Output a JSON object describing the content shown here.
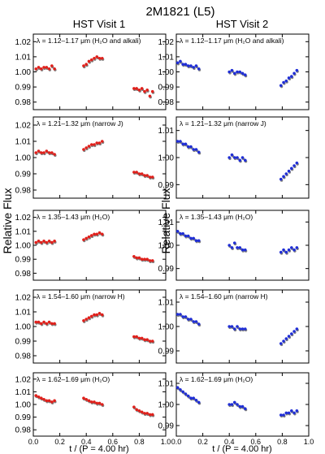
{
  "figure": {
    "title": "2M1821 (L5)",
    "ylabel": "Relative Flux",
    "xlabel": "t / (P = 4.00 hr)"
  },
  "colors": {
    "left": "#e0201b",
    "right": "#1f2ed6",
    "model": "#808080"
  },
  "chart_data": [
    {
      "type": "scatter",
      "title": "HST Visit 1",
      "label": "λ = 1.12–1.17 μm (H₂O and alkali)",
      "xlim": [
        0.0,
        1.0
      ],
      "ylim": [
        0.975,
        1.025
      ],
      "xticks": [
        "0.0",
        "0.2",
        "0.4",
        "0.6",
        "0.8",
        "1.0"
      ],
      "yticks": [
        "1.02",
        "1.01",
        "1.00",
        "0.99",
        "0.98"
      ],
      "series": [
        {
          "x": [
            0.02,
            0.04,
            0.06,
            0.08,
            0.1,
            0.12,
            0.14,
            0.16
          ],
          "y": [
            1.002,
            1.003,
            1.002,
            1.003,
            1.003,
            1.002,
            1.004,
            1.002
          ]
        },
        {
          "x": [
            0.38,
            0.4,
            0.42,
            0.44,
            0.46,
            0.48,
            0.5,
            0.52
          ],
          "y": [
            1.004,
            1.005,
            1.007,
            1.008,
            1.009,
            1.01,
            1.009,
            1.009
          ]
        },
        {
          "x": [
            0.76,
            0.78,
            0.8,
            0.82,
            0.84,
            0.86,
            0.88,
            0.9
          ],
          "y": [
            0.989,
            0.989,
            0.988,
            0.989,
            0.987,
            0.988,
            0.984,
            0.987
          ]
        }
      ]
    },
    {
      "type": "scatter",
      "title": "HST Visit 2",
      "label": "λ = 1.12–1.17 μm (H₂O and alkali)",
      "xlim": [
        0.0,
        1.0
      ],
      "ylim": [
        0.975,
        1.025
      ],
      "xticks": [
        "0.0",
        "0.2",
        "0.4",
        "0.6",
        "0.8",
        "1.0"
      ],
      "yticks": [
        "1.02",
        "1.01",
        "1.00",
        "0.99",
        "0.98"
      ],
      "series": [
        {
          "x": [
            0.01,
            0.03,
            0.05,
            0.07,
            0.09,
            0.11,
            0.13,
            0.15,
            0.17
          ],
          "y": [
            1.006,
            1.007,
            1.005,
            1.005,
            1.004,
            1.004,
            1.003,
            1.004,
            1.002
          ]
        },
        {
          "x": [
            0.4,
            0.42,
            0.44,
            0.46,
            0.48,
            0.5,
            0.52
          ],
          "y": [
            1.0,
            1.001,
            0.999,
            1.0,
            1.0,
            0.999,
            0.998
          ]
        },
        {
          "x": [
            0.79,
            0.81,
            0.83,
            0.85,
            0.87,
            0.89,
            0.91
          ],
          "y": [
            0.991,
            0.993,
            0.994,
            0.996,
            0.997,
            0.999,
            1.001
          ]
        }
      ]
    },
    {
      "type": "scatter",
      "label": "λ = 1.21–1.32 μm (narrow J)",
      "xlim": [
        0.0,
        1.0
      ],
      "ylim": [
        0.975,
        1.025
      ],
      "xticks": [
        "0.0",
        "0.2",
        "0.4",
        "0.6",
        "0.8",
        "1.0"
      ],
      "yticks": [
        "1.02",
        "1.01",
        "1.00",
        "0.99",
        "0.98"
      ],
      "series": [
        {
          "x": [
            0.02,
            0.04,
            0.06,
            0.08,
            0.1,
            0.12,
            0.14,
            0.16
          ],
          "y": [
            1.003,
            1.004,
            1.003,
            1.003,
            1.004,
            1.003,
            1.003,
            1.002
          ]
        },
        {
          "x": [
            0.38,
            0.4,
            0.42,
            0.44,
            0.46,
            0.48,
            0.5,
            0.52
          ],
          "y": [
            1.005,
            1.006,
            1.007,
            1.008,
            1.008,
            1.009,
            1.009,
            1.01
          ]
        },
        {
          "x": [
            0.76,
            0.78,
            0.8,
            0.82,
            0.84,
            0.86,
            0.88,
            0.9
          ],
          "y": [
            0.991,
            0.991,
            0.99,
            0.99,
            0.989,
            0.989,
            0.988,
            0.988
          ]
        }
      ]
    },
    {
      "type": "scatter",
      "label": "λ = 1.21–1.32 μm (narrow J)",
      "xlim": [
        0.0,
        1.0
      ],
      "ylim": [
        0.985,
        1.015
      ],
      "xticks": [
        "0.0",
        "0.2",
        "0.4",
        "0.6",
        "0.8",
        "1.0"
      ],
      "yticks": [
        "1.01",
        "1.00",
        "0.99"
      ],
      "series": [
        {
          "x": [
            0.01,
            0.03,
            0.05,
            0.07,
            0.09,
            0.11,
            0.13,
            0.15,
            0.17
          ],
          "y": [
            1.006,
            1.006,
            1.005,
            1.005,
            1.004,
            1.004,
            1.003,
            1.003,
            1.002
          ]
        },
        {
          "x": [
            0.4,
            0.42,
            0.44,
            0.46,
            0.48,
            0.5,
            0.52
          ],
          "y": [
            1.0,
            1.001,
            1.0,
            1.0,
            0.999,
            1.0,
            0.999
          ]
        },
        {
          "x": [
            0.79,
            0.81,
            0.83,
            0.85,
            0.87,
            0.89,
            0.91
          ],
          "y": [
            0.992,
            0.993,
            0.994,
            0.995,
            0.996,
            0.997,
            0.998
          ]
        }
      ]
    },
    {
      "type": "scatter",
      "label": "λ = 1.35–1.43 μm (H₂O)",
      "xlim": [
        0.0,
        1.0
      ],
      "ylim": [
        0.975,
        1.025
      ],
      "xticks": [
        "0.0",
        "0.2",
        "0.4",
        "0.6",
        "0.8",
        "1.0"
      ],
      "yticks": [
        "1.02",
        "1.01",
        "1.00",
        "0.99",
        "0.98"
      ],
      "series": [
        {
          "x": [
            0.02,
            0.04,
            0.06,
            0.08,
            0.1,
            0.12,
            0.14,
            0.16
          ],
          "y": [
            1.002,
            1.003,
            1.002,
            1.003,
            1.002,
            1.003,
            1.002,
            1.003
          ]
        },
        {
          "x": [
            0.38,
            0.4,
            0.42,
            0.44,
            0.46,
            0.48,
            0.5,
            0.52
          ],
          "y": [
            1.004,
            1.005,
            1.006,
            1.007,
            1.008,
            1.008,
            1.009,
            1.008
          ]
        },
        {
          "x": [
            0.76,
            0.78,
            0.8,
            0.82,
            0.84,
            0.86,
            0.88,
            0.9
          ],
          "y": [
            0.992,
            0.991,
            0.991,
            0.99,
            0.99,
            0.99,
            0.989,
            0.989
          ]
        }
      ]
    },
    {
      "type": "scatter",
      "label": "λ = 1.35–1.43 μm (H₂O)",
      "xlim": [
        0.0,
        1.0
      ],
      "ylim": [
        0.985,
        1.015
      ],
      "xticks": [
        "0.0",
        "0.2",
        "0.4",
        "0.6",
        "0.8",
        "1.0"
      ],
      "yticks": [
        "1.01",
        "1.00",
        "0.99"
      ],
      "series": [
        {
          "x": [
            0.01,
            0.03,
            0.05,
            0.07,
            0.09,
            0.11,
            0.13,
            0.15,
            0.17
          ],
          "y": [
            1.006,
            1.005,
            1.005,
            1.004,
            1.004,
            1.003,
            1.003,
            1.002,
            1.002
          ]
        },
        {
          "x": [
            0.4,
            0.42,
            0.44,
            0.46,
            0.48,
            0.5,
            0.52
          ],
          "y": [
            1.0,
            0.999,
            1.001,
            0.999,
            0.999,
            0.998,
            0.998
          ]
        },
        {
          "x": [
            0.79,
            0.81,
            0.83,
            0.85,
            0.87,
            0.89,
            0.91
          ],
          "y": [
            0.997,
            0.998,
            0.997,
            0.998,
            0.999,
            0.998,
            0.999
          ]
        }
      ]
    },
    {
      "type": "scatter",
      "label": "λ = 1.54–1.60 μm (narrow H)",
      "xlim": [
        0.0,
        1.0
      ],
      "ylim": [
        0.975,
        1.025
      ],
      "xticks": [
        "0.0",
        "0.2",
        "0.4",
        "0.6",
        "0.8",
        "1.0"
      ],
      "yticks": [
        "1.02",
        "1.01",
        "1.00",
        "0.99",
        "0.98"
      ],
      "series": [
        {
          "x": [
            0.02,
            0.04,
            0.06,
            0.08,
            0.1,
            0.12,
            0.14,
            0.16
          ],
          "y": [
            1.003,
            1.003,
            1.002,
            1.003,
            1.002,
            1.003,
            1.002,
            1.002
          ]
        },
        {
          "x": [
            0.38,
            0.4,
            0.42,
            0.44,
            0.46,
            0.48,
            0.5,
            0.52
          ],
          "y": [
            1.004,
            1.005,
            1.006,
            1.007,
            1.008,
            1.008,
            1.009,
            1.008
          ]
        },
        {
          "x": [
            0.76,
            0.78,
            0.8,
            0.82,
            0.84,
            0.86,
            0.88,
            0.9
          ],
          "y": [
            0.993,
            0.993,
            0.992,
            0.992,
            0.991,
            0.991,
            0.99,
            0.99
          ]
        }
      ]
    },
    {
      "type": "scatter",
      "label": "λ = 1.54–1.60 μm (narrow H)",
      "xlim": [
        0.0,
        1.0
      ],
      "ylim": [
        0.985,
        1.015
      ],
      "xticks": [
        "0.0",
        "0.2",
        "0.4",
        "0.6",
        "0.8",
        "1.0"
      ],
      "yticks": [
        "1.01",
        "1.00",
        "0.99"
      ],
      "series": [
        {
          "x": [
            0.01,
            0.03,
            0.05,
            0.07,
            0.09,
            0.11,
            0.13,
            0.15,
            0.17
          ],
          "y": [
            1.005,
            1.005,
            1.004,
            1.004,
            1.003,
            1.003,
            1.002,
            1.002,
            1.001
          ]
        },
        {
          "x": [
            0.4,
            0.42,
            0.44,
            0.46,
            0.48,
            0.5,
            0.52
          ],
          "y": [
            1.0,
            1.0,
            0.999,
            1.0,
            0.999,
            0.999,
            0.999
          ]
        },
        {
          "x": [
            0.79,
            0.81,
            0.83,
            0.85,
            0.87,
            0.89,
            0.91
          ],
          "y": [
            0.993,
            0.994,
            0.995,
            0.996,
            0.997,
            0.998,
            0.999
          ]
        }
      ]
    },
    {
      "type": "scatter",
      "label": "λ = 1.62–1.69 μm (H₂O)",
      "xlim": [
        0.0,
        1.0
      ],
      "ylim": [
        0.975,
        1.025
      ],
      "xticks": [
        "0.0",
        "0.2",
        "0.4",
        "0.6",
        "0.8",
        "1.0"
      ],
      "yticks": [
        "1.02",
        "1.01",
        "1.00",
        "0.99",
        "0.98"
      ],
      "series": [
        {
          "x": [
            0.02,
            0.04,
            0.06,
            0.08,
            0.1,
            0.12,
            0.14,
            0.16
          ],
          "y": [
            1.007,
            1.006,
            1.005,
            1.004,
            1.003,
            1.003,
            1.002,
            1.003
          ]
        },
        {
          "x": [
            0.38,
            0.4,
            0.42,
            0.44,
            0.46,
            0.48,
            0.5,
            0.52
          ],
          "y": [
            1.005,
            1.004,
            1.003,
            1.002,
            1.002,
            1.001,
            1.001,
            1.0
          ]
        },
        {
          "x": [
            0.76,
            0.78,
            0.8,
            0.82,
            0.84,
            0.86,
            0.88,
            0.9
          ],
          "y": [
            0.998,
            0.996,
            0.995,
            0.994,
            0.993,
            0.993,
            0.992,
            0.992
          ]
        }
      ]
    },
    {
      "type": "scatter",
      "label": "λ = 1.62–1.69 μm (H₂O)",
      "xlim": [
        0.0,
        1.0
      ],
      "ylim": [
        0.985,
        1.015
      ],
      "xticks": [
        "0.0",
        "0.2",
        "0.4",
        "0.6",
        "0.8",
        "1.0"
      ],
      "yticks": [
        "1.01",
        "1.00",
        "0.99"
      ],
      "series": [
        {
          "x": [
            0.01,
            0.03,
            0.05,
            0.07,
            0.09,
            0.11,
            0.13,
            0.15,
            0.17
          ],
          "y": [
            1.008,
            1.007,
            1.006,
            1.005,
            1.004,
            1.003,
            1.003,
            1.002,
            1.001
          ]
        },
        {
          "x": [
            0.4,
            0.42,
            0.44,
            0.46,
            0.48,
            0.5,
            0.52
          ],
          "y": [
            1.0,
            1.0,
            1.001,
            1.0,
            0.999,
            0.999,
            0.998
          ]
        },
        {
          "x": [
            0.79,
            0.81,
            0.83,
            0.85,
            0.87,
            0.89,
            0.91
          ],
          "y": [
            0.995,
            0.995,
            0.996,
            0.996,
            0.997,
            0.996,
            0.997
          ]
        }
      ]
    }
  ]
}
